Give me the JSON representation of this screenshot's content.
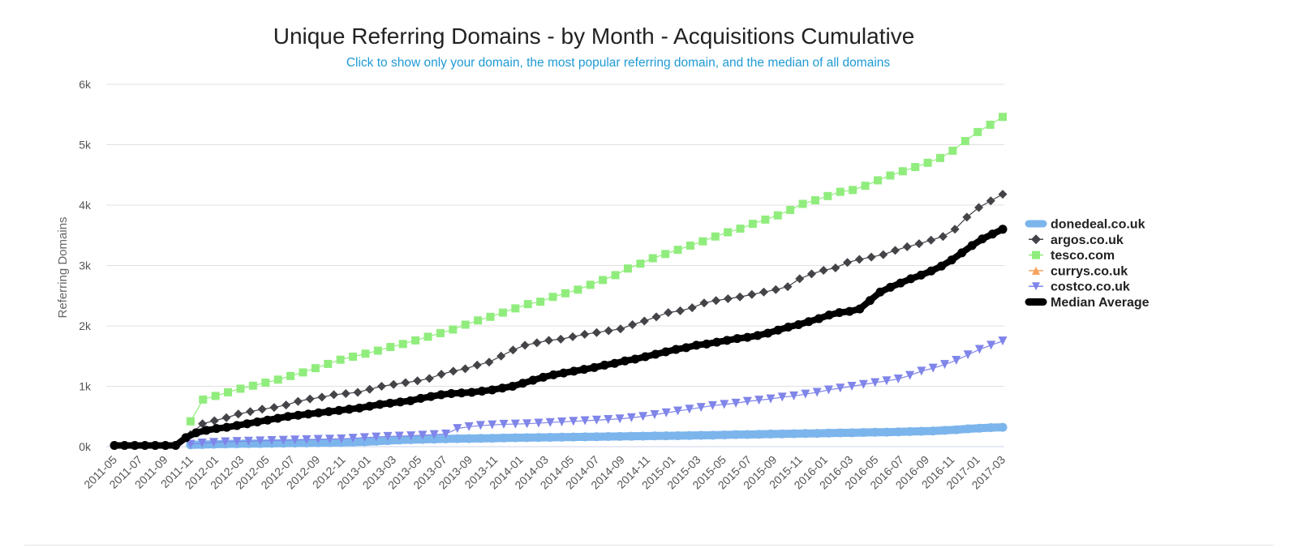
{
  "chart_data": {
    "type": "line",
    "title": "Unique Referring Domains - by Month - Acquisitions Cumulative",
    "subtitle": "Click to show only your domain, the most popular referring domain, and the median of all domains",
    "xlabel": "",
    "ylabel": "Referring Domains",
    "x_start": "2011-05",
    "x_end": "2017-03",
    "x_tick_labels": [
      "2011-05",
      "2011-07",
      "2011-09",
      "2011-11",
      "2012-01",
      "2012-03",
      "2012-05",
      "2012-07",
      "2012-09",
      "2012-11",
      "2013-01",
      "2013-03",
      "2013-05",
      "2013-07",
      "2013-09",
      "2013-11",
      "2014-01",
      "2014-03",
      "2014-05",
      "2014-07",
      "2014-09",
      "2014-11",
      "2015-01",
      "2015-03",
      "2015-05",
      "2015-07",
      "2015-09",
      "2015-11",
      "2016-01",
      "2016-03",
      "2016-05",
      "2016-07",
      "2016-09",
      "2016-11",
      "2017-01",
      "2017-03"
    ],
    "ylim": [
      0,
      6000
    ],
    "y_ticks": [
      0,
      1000,
      2000,
      3000,
      4000,
      5000,
      6000
    ],
    "y_tick_labels": [
      "0k",
      "1k",
      "2k",
      "3k",
      "4k",
      "5k",
      "6k"
    ],
    "grid": "horizontal",
    "legend_position": "right",
    "series": [
      {
        "name": "donedeal.co.uk",
        "color": "#7cb5ec",
        "marker": "circle",
        "start": "2011-11",
        "values": [
          30,
          35,
          40,
          45,
          48,
          50,
          52,
          55,
          58,
          60,
          62,
          65,
          68,
          70,
          75,
          80,
          90,
          100,
          110,
          115,
          120,
          125,
          130,
          132,
          135,
          138,
          140,
          145,
          148,
          150,
          152,
          155,
          158,
          160,
          162,
          165,
          168,
          170,
          172,
          175,
          178,
          180,
          182,
          185,
          188,
          190,
          195,
          200,
          202,
          205,
          210,
          212,
          215,
          218,
          220,
          225,
          228,
          230,
          235,
          238,
          240,
          245,
          250,
          255,
          260,
          270,
          280,
          295,
          305,
          315,
          320
        ]
      },
      {
        "name": "argos.co.uk",
        "color": "#434348",
        "marker": "diamond",
        "start": "2011-11",
        "values": [
          200,
          380,
          430,
          480,
          540,
          580,
          620,
          650,
          690,
          750,
          790,
          820,
          860,
          880,
          900,
          950,
          1000,
          1030,
          1060,
          1090,
          1130,
          1200,
          1250,
          1290,
          1350,
          1400,
          1500,
          1600,
          1680,
          1720,
          1760,
          1780,
          1820,
          1860,
          1890,
          1920,
          1950,
          2020,
          2080,
          2150,
          2220,
          2250,
          2300,
          2380,
          2420,
          2450,
          2480,
          2520,
          2560,
          2600,
          2650,
          2780,
          2860,
          2920,
          2960,
          3050,
          3100,
          3140,
          3180,
          3250,
          3310,
          3360,
          3420,
          3480,
          3600,
          3800,
          3960,
          4070,
          4180
        ]
      },
      {
        "name": "tesco.com",
        "color": "#90ed7d",
        "marker": "square",
        "start": "2011-11",
        "values": [
          420,
          780,
          840,
          900,
          960,
          1010,
          1060,
          1110,
          1170,
          1230,
          1300,
          1370,
          1440,
          1490,
          1540,
          1590,
          1650,
          1700,
          1760,
          1820,
          1880,
          1940,
          2020,
          2090,
          2150,
          2220,
          2290,
          2360,
          2400,
          2480,
          2540,
          2600,
          2680,
          2760,
          2840,
          2950,
          3030,
          3120,
          3190,
          3260,
          3330,
          3400,
          3480,
          3550,
          3610,
          3690,
          3760,
          3830,
          3920,
          4020,
          4080,
          4150,
          4220,
          4250,
          4320,
          4410,
          4490,
          4560,
          4630,
          4700,
          4780,
          4900,
          5060,
          5210,
          5330,
          5460
        ]
      },
      {
        "name": "currys.co.uk",
        "color": "#f7a35c",
        "marker": "triangle",
        "start": "2011-11",
        "values": []
      },
      {
        "name": "costco.co.uk",
        "color": "#8085e9",
        "marker": "triangle-down",
        "start": "2011-11",
        "values": [
          40,
          60,
          70,
          80,
          85,
          90,
          95,
          100,
          105,
          110,
          115,
          120,
          125,
          130,
          140,
          150,
          160,
          170,
          175,
          180,
          190,
          200,
          210,
          300,
          330,
          350,
          360,
          370,
          375,
          380,
          390,
          400,
          410,
          420,
          430,
          440,
          450,
          460,
          480,
          500,
          530,
          560,
          590,
          620,
          650,
          680,
          700,
          720,
          750,
          770,
          790,
          820,
          840,
          870,
          900,
          940,
          970,
          1000,
          1030,
          1060,
          1090,
          1120,
          1180,
          1250,
          1300,
          1360,
          1430,
          1520,
          1610,
          1680,
          1750
        ]
      },
      {
        "name": "Median Average",
        "color": "#000000",
        "marker": "circle",
        "start": "2011-05",
        "values": [
          20,
          20,
          20,
          20,
          20,
          20,
          20,
          150,
          230,
          270,
          300,
          320,
          350,
          380,
          410,
          440,
          470,
          500,
          520,
          540,
          560,
          580,
          600,
          620,
          640,
          670,
          700,
          720,
          740,
          760,
          800,
          830,
          860,
          880,
          890,
          900,
          920,
          940,
          970,
          1000,
          1050,
          1100,
          1150,
          1190,
          1220,
          1250,
          1280,
          1310,
          1350,
          1380,
          1420,
          1450,
          1490,
          1530,
          1570,
          1610,
          1640,
          1680,
          1700,
          1730,
          1760,
          1790,
          1810,
          1840,
          1880,
          1930,
          1980,
          2020,
          2070,
          2120,
          2180,
          2220,
          2240,
          2280,
          2420,
          2560,
          2640,
          2710,
          2780,
          2840,
          2910,
          2990,
          3090,
          3210,
          3330,
          3440,
          3520,
          3600
        ]
      }
    ]
  }
}
